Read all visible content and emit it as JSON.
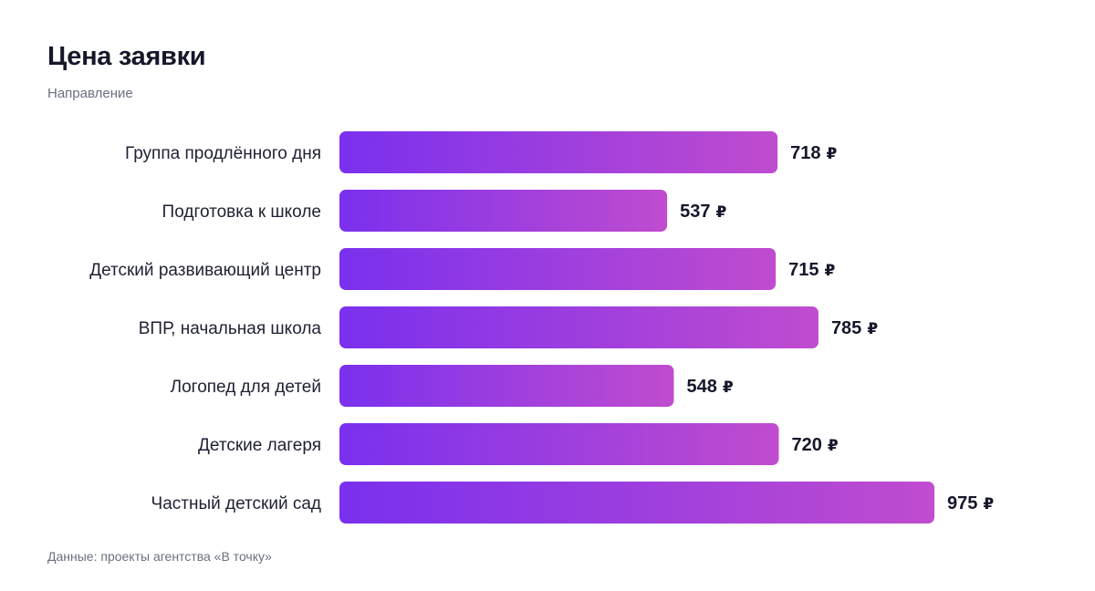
{
  "header": {
    "title": "Цена заявки",
    "subtitle": "Направление"
  },
  "footer": {
    "source": "Данные: проекты агентства «В точку»"
  },
  "colors": {
    "bar_start": "#7a30ee",
    "bar_end": "#c04ccf",
    "text": "#15172a",
    "muted": "#6b6f80"
  },
  "chart_data": {
    "type": "bar",
    "orientation": "horizontal",
    "title": "Цена заявки",
    "subtitle": "Направление",
    "unit": "₽",
    "categories": [
      "Группа продлённого дня",
      "Подготовка к школе",
      "Детский развивающий центр",
      "ВПР, начальная школа",
      "Логопед для детей",
      "Детские лагеря",
      "Частный детский сад"
    ],
    "values": [
      718,
      537,
      715,
      785,
      548,
      720,
      975
    ],
    "value_labels": [
      "718",
      "537",
      "715",
      "785",
      "548",
      "720",
      "975"
    ],
    "grid": false,
    "legend": "none"
  }
}
